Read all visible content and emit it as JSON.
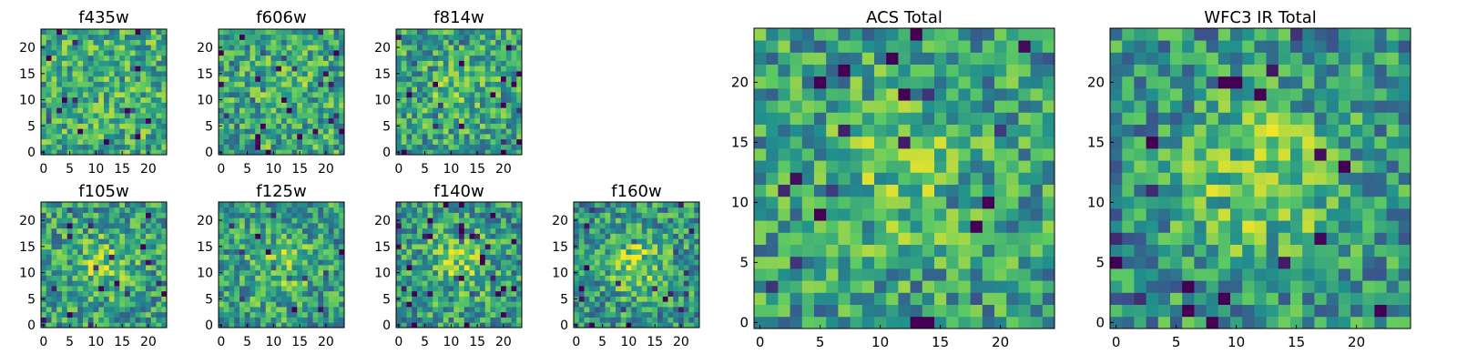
{
  "chart_data": [
    {
      "type": "heatmap",
      "title": "f435w",
      "grid_size": 24,
      "seed": 11,
      "blob": 0.0,
      "xlim": [
        0,
        24
      ],
      "ylim": [
        0,
        24
      ],
      "xticks": [
        "0",
        "5",
        "10",
        "15",
        "20"
      ],
      "yticks": [
        "0",
        "5",
        "10",
        "15",
        "20"
      ],
      "grid": false
    },
    {
      "type": "heatmap",
      "title": "f606w",
      "grid_size": 24,
      "seed": 23,
      "blob": 0.2,
      "xlim": [
        0,
        24
      ],
      "ylim": [
        0,
        24
      ],
      "xticks": [
        "0",
        "5",
        "10",
        "15",
        "20"
      ],
      "yticks": [
        "0",
        "5",
        "10",
        "15",
        "20"
      ],
      "grid": false
    },
    {
      "type": "heatmap",
      "title": "f814w",
      "grid_size": 24,
      "seed": 37,
      "blob": 0.35,
      "xlim": [
        0,
        24
      ],
      "ylim": [
        0,
        24
      ],
      "xticks": [
        "0",
        "5",
        "10",
        "15",
        "20"
      ],
      "yticks": [
        "0",
        "5",
        "10",
        "15",
        "20"
      ],
      "grid": false
    },
    {
      "type": "heatmap",
      "title": "f105w",
      "grid_size": 24,
      "seed": 41,
      "blob": 0.55,
      "xlim": [
        0,
        24
      ],
      "ylim": [
        0,
        24
      ],
      "xticks": [
        "0",
        "5",
        "10",
        "15",
        "20"
      ],
      "yticks": [
        "0",
        "5",
        "10",
        "15",
        "20"
      ],
      "grid": false
    },
    {
      "type": "heatmap",
      "title": "f125w",
      "grid_size": 24,
      "seed": 53,
      "blob": 0.55,
      "xlim": [
        0,
        24
      ],
      "ylim": [
        0,
        24
      ],
      "xticks": [
        "0",
        "5",
        "10",
        "15",
        "20"
      ],
      "yticks": [
        "0",
        "5",
        "10",
        "15",
        "20"
      ],
      "grid": false
    },
    {
      "type": "heatmap",
      "title": "f140w",
      "grid_size": 24,
      "seed": 67,
      "blob": 0.65,
      "xlim": [
        0,
        24
      ],
      "ylim": [
        0,
        24
      ],
      "xticks": [
        "0",
        "5",
        "10",
        "15",
        "20"
      ],
      "yticks": [
        "0",
        "5",
        "10",
        "15",
        "20"
      ],
      "grid": false
    },
    {
      "type": "heatmap",
      "title": "f160w",
      "grid_size": 24,
      "seed": 79,
      "blob": 0.8,
      "xlim": [
        0,
        24
      ],
      "ylim": [
        0,
        24
      ],
      "xticks": [
        "0",
        "5",
        "10",
        "15",
        "20"
      ],
      "yticks": [
        "0",
        "5",
        "10",
        "15",
        "20"
      ],
      "grid": false
    },
    {
      "type": "heatmap",
      "title": "ACS Total",
      "grid_size": 25,
      "seed": 97,
      "blob": 0.5,
      "xlim": [
        0,
        25
      ],
      "ylim": [
        0,
        25
      ],
      "xticks": [
        "0",
        "5",
        "10",
        "15",
        "20"
      ],
      "yticks": [
        "0",
        "5",
        "10",
        "15",
        "20"
      ],
      "grid": false
    },
    {
      "type": "heatmap",
      "title": "WFC3 IR Total",
      "grid_size": 25,
      "seed": 113,
      "blob": 0.9,
      "xlim": [
        0,
        25
      ],
      "ylim": [
        0,
        25
      ],
      "xticks": [
        "0",
        "5",
        "10",
        "15",
        "20"
      ],
      "yticks": [
        "0",
        "5",
        "10",
        "15",
        "20"
      ],
      "grid": false
    }
  ],
  "colormap": "viridis",
  "colors": {
    "low": "#440154",
    "mid_low": "#3b528b",
    "mid": "#21908d",
    "mid_high": "#5dc963",
    "high": "#fde725"
  }
}
